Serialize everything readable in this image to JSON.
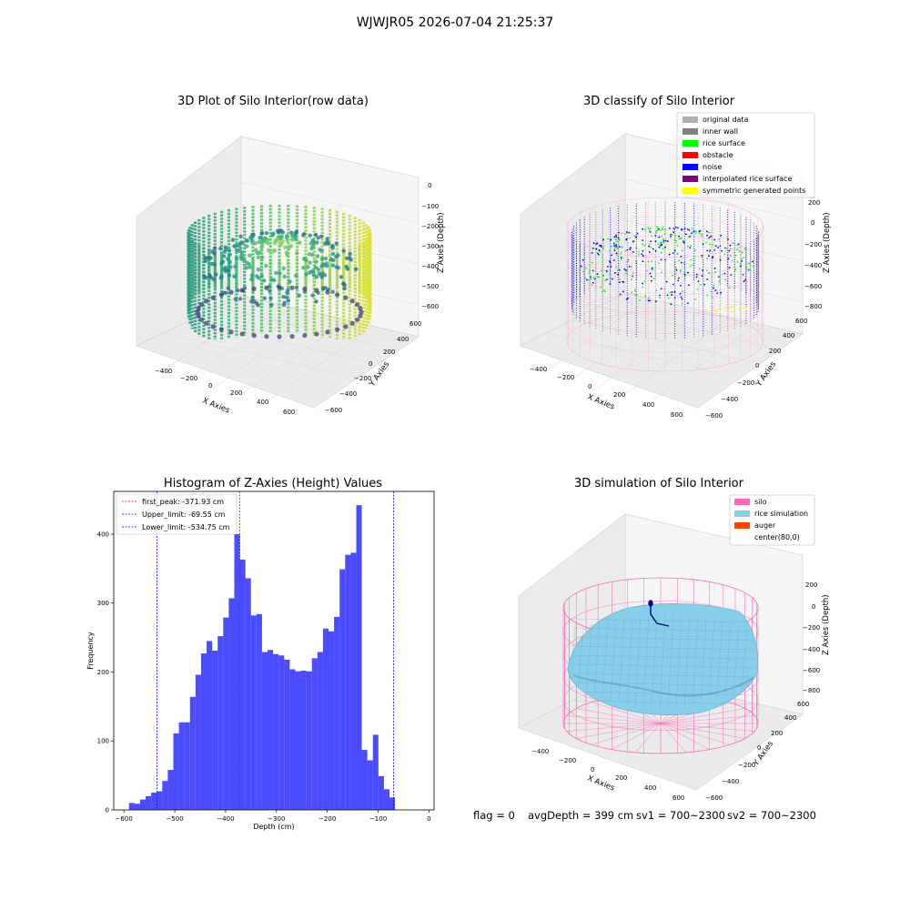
{
  "figure": {
    "suptitle": "WJWJR05 2026-07-04 21:25:37",
    "footer": {
      "flag": "flag = 0",
      "avg_depth": "avgDepth = 399 cm",
      "sv1": "sv1 = 700~2300",
      "sv2": "sv2 = 700~2300"
    }
  },
  "panels": {
    "raw": {
      "title": "3D Plot of Silo Interior(row data)",
      "xlabel": "X Axies",
      "ylabel": "Y Axies",
      "zlabel": "Z Axies (Depth)",
      "xticks": [
        "−400",
        "−200",
        "0",
        "200",
        "400",
        "600"
      ],
      "yticks": [
        "−600",
        "−400",
        "−200",
        "0",
        "200",
        "400",
        "600"
      ],
      "zticks": [
        "0",
        "−100",
        "−200",
        "−300",
        "−400",
        "−500",
        "−600"
      ]
    },
    "classify": {
      "title": "3D classify of Silo Interior",
      "xlabel": "X Axies",
      "ylabel": "Y Axies",
      "zlabel": "Z Axies (Depth)",
      "xticks": [
        "−400",
        "−200",
        "0",
        "200",
        "400",
        "600"
      ],
      "yticks": [
        "−600",
        "−400",
        "−200",
        "0",
        "200",
        "400",
        "600"
      ],
      "zticks": [
        "200",
        "0",
        "−200",
        "−400",
        "−600",
        "−800"
      ],
      "legend": [
        {
          "label": "original data",
          "color": "#b0b0b0"
        },
        {
          "label": "inner wall",
          "color": "#808080"
        },
        {
          "label": "rice surface",
          "color": "#00ff00"
        },
        {
          "label": "obstacle",
          "color": "#ff0000"
        },
        {
          "label": "noise",
          "color": "#0000ff"
        },
        {
          "label": "interpolated rice surface",
          "color": "#800080"
        },
        {
          "label": "symmetric generated points",
          "color": "#ffff00"
        }
      ]
    },
    "simulation": {
      "title": "3D simulation of Silo Interior",
      "xlabel": "X Axies",
      "ylabel": "Y Axies",
      "zlabel": "Z Axies (Depth)",
      "xticks": [
        "−400",
        "−200",
        "0",
        "200",
        "400",
        "600"
      ],
      "yticks": [
        "−600",
        "−400",
        "−200",
        "0",
        "200",
        "400",
        "600"
      ],
      "zticks": [
        "200",
        "0",
        "−200",
        "−400",
        "−600",
        "−800"
      ],
      "legend": [
        {
          "label": "silo",
          "color": "#ff69b4"
        },
        {
          "label": "rice simulation",
          "color": "#87ceeb"
        },
        {
          "label": "auger",
          "color": "#ff4500"
        },
        {
          "label": "center(80,0)",
          "color": "none"
        }
      ]
    }
  },
  "chart_data": [
    {
      "type": "bar",
      "title": "Histogram of Z-Axies (Height) Values",
      "xlabel": "Depth (cm)",
      "ylabel": "Frequency",
      "xlim": [
        -620,
        10
      ],
      "ylim": [
        0,
        462
      ],
      "xticks": [
        -600,
        -500,
        -400,
        -300,
        -200,
        -100,
        0
      ],
      "xtick_labels": [
        "−600",
        "−500",
        "−400",
        "−300",
        "−200",
        "−100",
        "0"
      ],
      "yticks": [
        0,
        100,
        200,
        300,
        400
      ],
      "bar_color": "#0000ff",
      "bin_start": -590,
      "bin_width": 10.9,
      "values": [
        10,
        9,
        15,
        20,
        25,
        27,
        42,
        58,
        111,
        127,
        127,
        164,
        196,
        227,
        245,
        231,
        252,
        279,
        307,
        400,
        363,
        336,
        282,
        284,
        229,
        232,
        226,
        224,
        218,
        204,
        201,
        202,
        201,
        220,
        229,
        263,
        259,
        280,
        349,
        370,
        373,
        442,
        87,
        72,
        109,
        49,
        30,
        18
      ],
      "vlines": [
        {
          "label": "first_peak: -371.93 cm",
          "x": -371.93,
          "color": "#ff0000"
        },
        {
          "label": "Upper_limit: -69.55 cm",
          "x": -69.55,
          "color": "#0000ff"
        },
        {
          "label": "Lower_limit: -534.75 cm",
          "x": -534.75,
          "color": "#0000ff"
        }
      ]
    }
  ]
}
